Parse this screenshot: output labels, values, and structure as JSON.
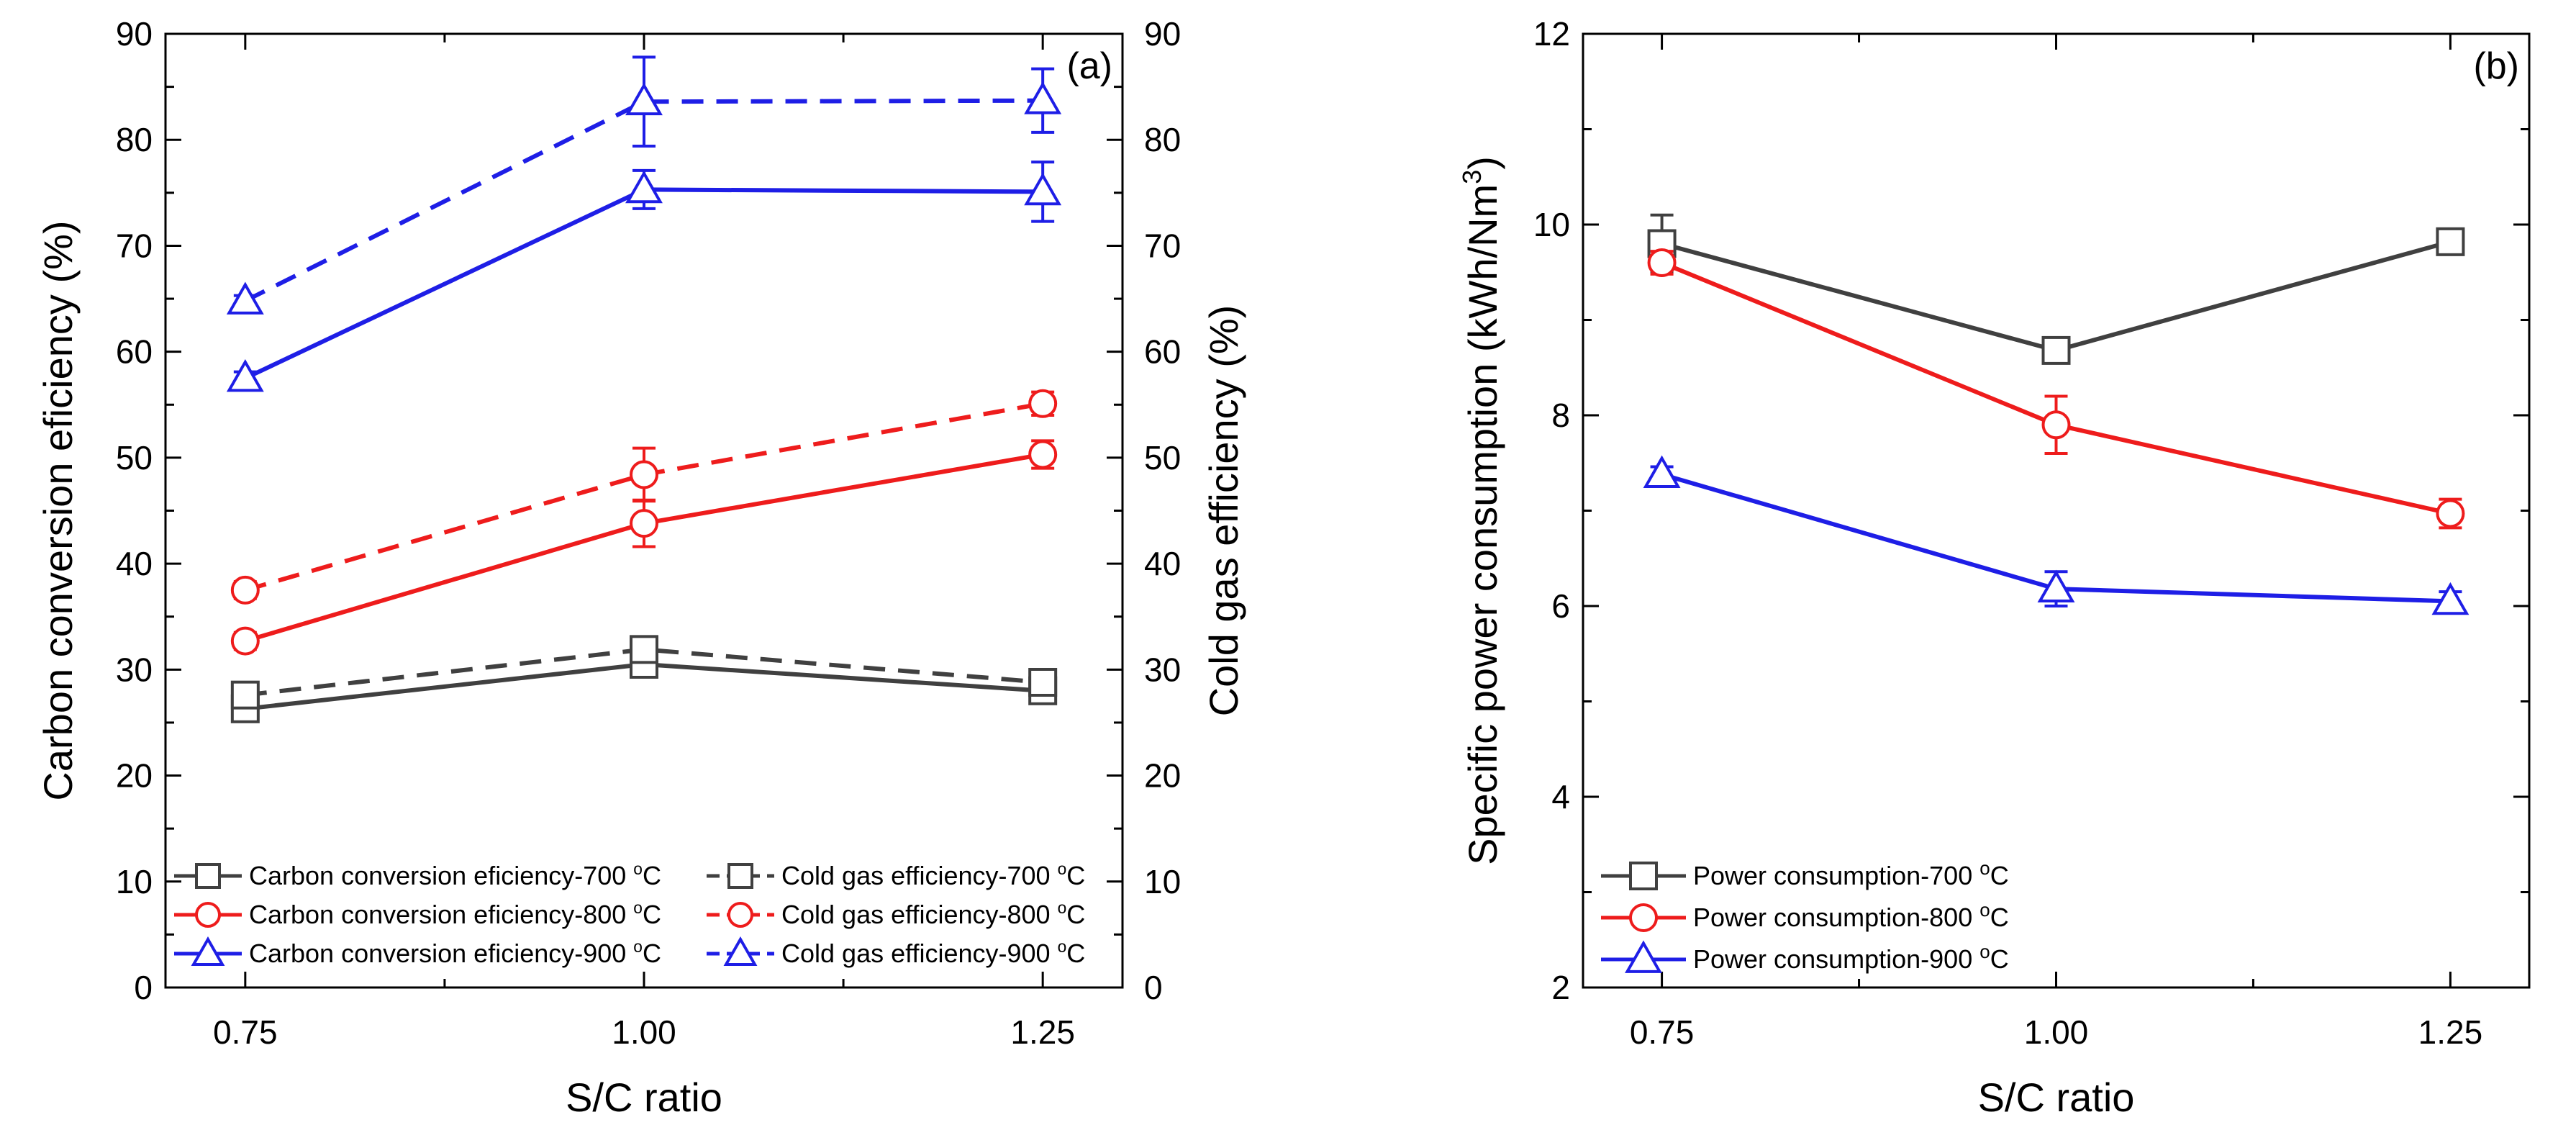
{
  "chart_data": [
    {
      "type": "line",
      "panel_label": "(a)",
      "xlabel": "S/C ratio",
      "ylabel_left": "Carbon conversion eficiency (%)",
      "ylabel_right": "Cold gas efficiency (%)",
      "x": [
        0.75,
        1.0,
        1.25
      ],
      "xticks": [
        "0.75",
        "1.00",
        "1.25"
      ],
      "xlim": [
        0.7,
        1.3
      ],
      "ylim_left": [
        0,
        90
      ],
      "ylim_right": [
        0,
        90
      ],
      "yticks": [
        "0",
        "10",
        "20",
        "30",
        "40",
        "50",
        "60",
        "70",
        "80",
        "90"
      ],
      "series": [
        {
          "name": "Carbon conversion eficiency-700 °C",
          "legend_prefix": "Carbon conversion eficiency-700 ",
          "legend_sup": "o",
          "legend_unit": "C",
          "axis": "left",
          "color": "#404040",
          "dash": false,
          "marker": "square",
          "values": [
            26.3,
            30.5,
            28.0
          ],
          "errors": [
            0.8,
            0.8,
            0.6
          ]
        },
        {
          "name": "Carbon conversion eficiency-800 °C",
          "legend_prefix": "Carbon conversion eficiency-800 ",
          "legend_sup": "o",
          "legend_unit": "C",
          "axis": "left",
          "color": "#ee1c1c",
          "dash": false,
          "marker": "circle",
          "values": [
            32.7,
            43.8,
            50.3
          ],
          "errors": [
            0.8,
            2.2,
            1.3
          ]
        },
        {
          "name": "Carbon conversion eficiency-900 °C",
          "legend_prefix": "Carbon conversion eficiency-900 ",
          "legend_sup": "o",
          "legend_unit": "C",
          "axis": "left",
          "color": "#1e1ee6",
          "dash": false,
          "marker": "triangle",
          "values": [
            57.5,
            75.3,
            75.1
          ],
          "errors": [
            0.6,
            1.8,
            2.8
          ]
        },
        {
          "name": "Cold gas efficiency-700 °C",
          "legend_prefix": "Cold gas efficiency-700 ",
          "legend_sup": "o",
          "legend_unit": "C",
          "axis": "right",
          "color": "#404040",
          "dash": true,
          "marker": "square",
          "values": [
            27.6,
            31.9,
            28.8
          ],
          "errors": [
            0.7,
            0.9,
            0.8
          ]
        },
        {
          "name": "Cold gas efficiency-800 °C",
          "legend_prefix": "Cold gas efficiency-800 ",
          "legend_sup": "o",
          "legend_unit": "C",
          "axis": "right",
          "color": "#ee1c1c",
          "dash": true,
          "marker": "circle",
          "values": [
            37.5,
            48.4,
            55.1
          ],
          "errors": [
            0.8,
            2.5,
            1.1
          ]
        },
        {
          "name": "Cold gas efficiency-900 °C",
          "legend_prefix": "Cold gas efficiency-900 ",
          "legend_sup": "o",
          "legend_unit": "C",
          "axis": "right",
          "color": "#1e1ee6",
          "dash": true,
          "marker": "triangle",
          "values": [
            64.8,
            83.6,
            83.7
          ],
          "errors": [
            0.5,
            4.2,
            3.0
          ]
        }
      ],
      "legend": "bottom"
    },
    {
      "type": "line",
      "panel_label": "(b)",
      "xlabel": "S/C ratio",
      "ylabel_prefix": "Specific power consumption (kWh/Nm",
      "ylabel_sup": "3",
      "ylabel_suffix": ")",
      "x": [
        0.75,
        1.0,
        1.25
      ],
      "xticks": [
        "0.75",
        "1.00",
        "1.25"
      ],
      "xlim": [
        0.7,
        1.3
      ],
      "ylim": [
        2,
        12
      ],
      "yticks": [
        "2",
        "4",
        "6",
        "8",
        "10",
        "12"
      ],
      "series": [
        {
          "name": "Power consumption-700 °C",
          "legend_prefix": "Power consumption-700 ",
          "legend_sup": "o",
          "legend_unit": "C",
          "color": "#404040",
          "dash": false,
          "marker": "square",
          "values": [
            9.8,
            8.68,
            9.82
          ],
          "errors": [
            0.3,
            0.1,
            0.12
          ]
        },
        {
          "name": "Power consumption-800 °C",
          "legend_prefix": "Power consumption-800 ",
          "legend_sup": "o",
          "legend_unit": "C",
          "color": "#ee1c1c",
          "dash": false,
          "marker": "circle",
          "values": [
            9.6,
            7.9,
            6.97
          ],
          "errors": [
            0.12,
            0.3,
            0.15
          ]
        },
        {
          "name": "Power consumption-900 °C",
          "legend_prefix": "Power consumption-900 ",
          "legend_sup": "o",
          "legend_unit": "C",
          "color": "#1e1ee6",
          "dash": false,
          "marker": "triangle",
          "values": [
            7.38,
            6.18,
            6.05
          ],
          "errors": [
            0.08,
            0.18,
            0.1
          ]
        }
      ],
      "legend": "bottom-left"
    }
  ]
}
